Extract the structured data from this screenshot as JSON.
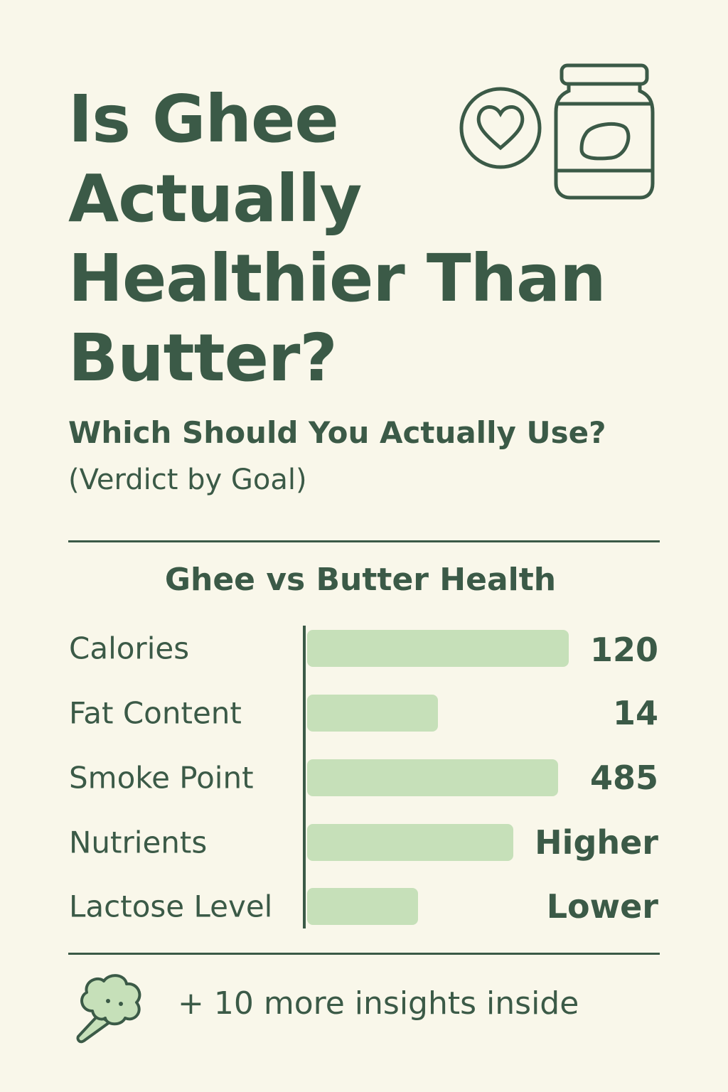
{
  "header": {
    "title": "Is Ghee Actually Healthier Than Butter?",
    "subtitle": "Which Should You Actually Use?",
    "note": "(Verdict by Goal)"
  },
  "comparison": {
    "heading": "Ghee vs Butter Health",
    "rows": [
      {
        "label": "Calories",
        "value": "120"
      },
      {
        "label": "Fat Content",
        "value": "14"
      },
      {
        "label": "Smoke Point",
        "value": "485"
      },
      {
        "label": "Nutrients",
        "value": "Higher"
      },
      {
        "label": "Lactose Level",
        "value": "Lower"
      }
    ]
  },
  "footer": {
    "text": "+ 10 more insights inside"
  }
}
